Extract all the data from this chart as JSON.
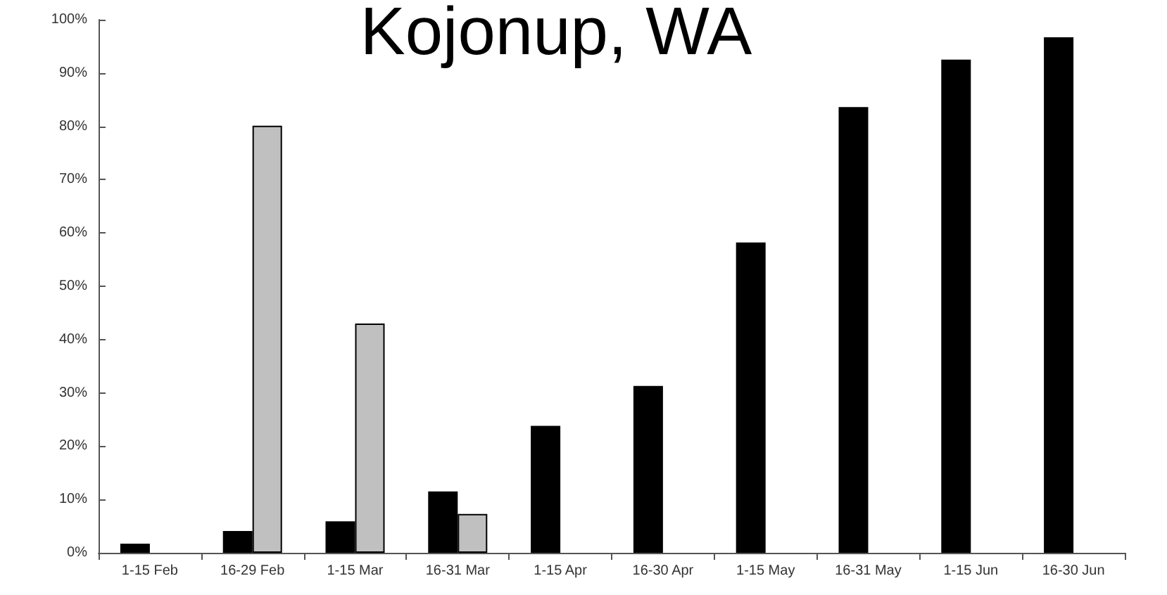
{
  "chart_data": {
    "type": "bar",
    "title": "Kojonup, WA",
    "categories": [
      "1-15 Feb",
      "16-29 Feb",
      "1-15 Mar",
      "16-31 Mar",
      "1-15 Apr",
      "16-30 Apr",
      "1-15 May",
      "16-31 May",
      "1-15 Jun",
      "16-30 Jun"
    ],
    "series": [
      {
        "color": "#000000",
        "values": [
          1.7,
          4.1,
          5.9,
          11.5,
          23.8,
          31.3,
          58.2,
          83.6,
          92.5,
          96.7
        ]
      },
      {
        "color": "#c0c0c0",
        "values": [
          null,
          80.1,
          43,
          7.3,
          null,
          null,
          null,
          null,
          null,
          null
        ]
      }
    ],
    "ylim": [
      0,
      100
    ],
    "yticks": [
      {
        "value": 0,
        "label": "0%"
      },
      {
        "value": 10,
        "label": "10%"
      },
      {
        "value": 20,
        "label": "20%"
      },
      {
        "value": 30,
        "label": "30%"
      },
      {
        "value": 40,
        "label": "40%"
      },
      {
        "value": 50,
        "label": "50%"
      },
      {
        "value": 60,
        "label": "60%"
      },
      {
        "value": 70,
        "label": "70%"
      },
      {
        "value": 80,
        "label": "80%"
      },
      {
        "value": 90,
        "label": "90%"
      },
      {
        "value": 100,
        "label": "100%"
      }
    ],
    "grid": false
  }
}
